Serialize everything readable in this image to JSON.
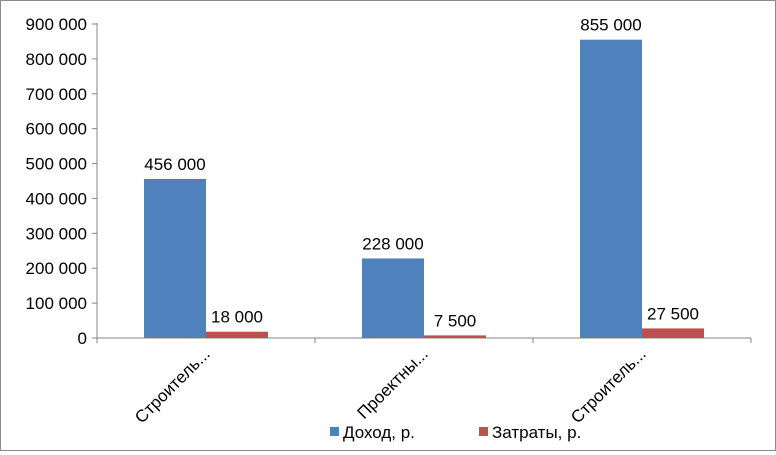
{
  "chart_data": {
    "type": "bar",
    "categories": [
      "Строитель...",
      "Проектны...",
      "Строитель..."
    ],
    "series": [
      {
        "name": "Доход, р.",
        "values": [
          456000,
          228000,
          855000
        ],
        "labels": [
          "456 000",
          "228 000",
          "855 000"
        ],
        "color": "#4f81bd"
      },
      {
        "name": "Затраты, р.",
        "values": [
          18000,
          7500,
          27500
        ],
        "labels": [
          "18 000",
          "7 500",
          "27 500"
        ],
        "color": "#c0504d"
      }
    ],
    "ylim": [
      0,
      900000
    ],
    "yticks": [
      "0",
      "100 000",
      "200 000",
      "300 000",
      "400 000",
      "500 000",
      "600 000",
      "700 000",
      "800 000",
      "900 000"
    ],
    "title": "",
    "xlabel": "",
    "ylabel": "",
    "grid": false,
    "legend_position": "bottom"
  }
}
